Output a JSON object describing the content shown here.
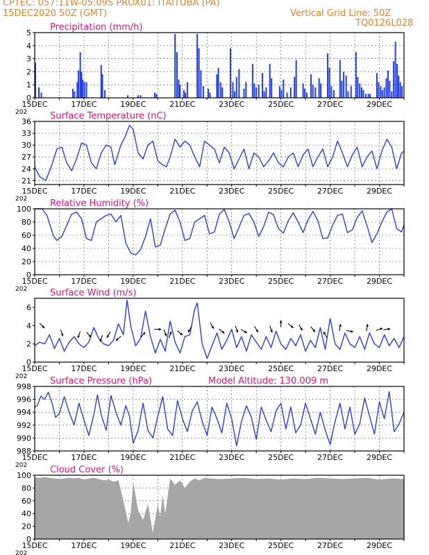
{
  "header": {
    "line1": "CPTEC:   057:11W-05:09S   PROX01: ITAITUBA (PA)",
    "date": "15DEC2020 50Z (GMT)",
    "grid_note": "Vertical Grid Line: 50Z",
    "code": "TQ0126L028"
  },
  "colors": {
    "header": "#e8822a",
    "title": "#e0147c",
    "series": "#2a3cf0",
    "bars": "#1f3cff",
    "cloud": "#a6a6a6",
    "frame": "#000000"
  },
  "x_ticks": [
    "15DEC",
    "17DEC",
    "19DEC",
    "21DEC",
    "23DEC",
    "25DEC",
    "27DEC",
    "29DEC"
  ],
  "x_year_stub": "202",
  "chart_data": [
    {
      "type": "bar",
      "title": "Precipitation (mm/h)",
      "x_range": [
        15,
        30
      ],
      "ylim": [
        0,
        5
      ],
      "yticks": [
        0,
        1,
        2,
        3,
        4,
        5
      ],
      "grid": "dashed",
      "x": [
        15.03,
        15.17,
        15.27,
        16.55,
        16.62,
        16.73,
        16.78,
        16.85,
        16.9,
        16.95,
        17.02,
        17.1,
        17.7,
        17.75,
        17.85,
        18.78,
        19.2,
        19.3,
        19.88,
        19.95,
        20.7,
        20.78,
        20.85,
        20.9,
        21.06,
        21.12,
        21.2,
        21.6,
        21.67,
        21.75,
        21.85,
        22.05,
        22.12,
        22.4,
        22.46,
        22.55,
        22.62,
        22.95,
        23.05,
        23.12,
        23.2,
        23.3,
        23.5,
        23.58,
        23.85,
        23.92,
        24.0,
        24.1,
        24.25,
        24.32,
        24.4,
        24.55,
        24.62,
        24.95,
        25.02,
        25.1,
        25.25,
        25.4,
        25.55,
        25.62,
        25.9,
        25.97,
        26.05,
        26.22,
        26.3,
        26.4,
        26.55,
        26.62,
        26.9,
        26.97,
        27.05,
        27.15,
        27.4,
        27.47,
        27.55,
        27.65,
        27.73,
        27.85,
        28.05,
        28.12,
        28.2,
        28.28,
        28.35,
        28.45,
        28.55,
        28.62,
        28.9,
        28.97,
        29.05,
        29.12,
        29.2,
        29.28,
        29.35,
        29.42,
        29.5,
        29.58,
        29.65,
        29.72,
        29.78,
        29.85,
        29.92
      ],
      "values": [
        2.7,
        0.8,
        0.4,
        0.7,
        0.5,
        1.2,
        2.1,
        3.5,
        2.0,
        1.4,
        1.2,
        1.2,
        2.5,
        1.8,
        0.6,
        0.2,
        0.2,
        0.2,
        0.4,
        0.3,
        4.9,
        3.5,
        1.4,
        1.0,
        0.6,
        0.4,
        1.2,
        4.9,
        3.8,
        2.1,
        0.9,
        0.7,
        0.4,
        1.8,
        2.3,
        1.2,
        0.8,
        3.8,
        1.2,
        0.5,
        1.6,
        2.2,
        0.7,
        1.2,
        2.6,
        1.1,
        0.8,
        1.0,
        1.9,
        0.5,
        0.8,
        2.6,
        1.5,
        0.9,
        0.6,
        1.4,
        0.4,
        0.8,
        1.6,
        2.9,
        1.1,
        0.7,
        0.4,
        1.8,
        1.0,
        0.8,
        1.5,
        1.1,
        3.4,
        2.3,
        0.9,
        0.6,
        2.9,
        1.3,
        2.0,
        1.7,
        0.5,
        0.9,
        3.5,
        1.6,
        1.1,
        0.8,
        0.6,
        0.3,
        0.3,
        0.3,
        1.9,
        1.2,
        0.9,
        0.6,
        0.8,
        1.5,
        2.1,
        1.3,
        0.5,
        2.8,
        4.3,
        2.6,
        1.7,
        1.2,
        0.9
      ]
    },
    {
      "type": "line",
      "title": "Surface Temperature (nC)",
      "x_range": [
        15,
        30
      ],
      "ylim": [
        20,
        36
      ],
      "yticks": [
        21,
        24,
        27,
        30,
        33,
        36
      ],
      "grid": "dashed",
      "x": [
        15.0,
        15.2,
        15.45,
        15.7,
        15.9,
        16.1,
        16.3,
        16.5,
        16.7,
        16.9,
        17.1,
        17.3,
        17.5,
        17.7,
        17.9,
        18.1,
        18.25,
        18.5,
        18.7,
        18.85,
        19.0,
        19.2,
        19.4,
        19.6,
        19.8,
        20.0,
        20.2,
        20.35,
        20.5,
        20.7,
        20.9,
        21.1,
        21.3,
        21.5,
        21.7,
        21.9,
        22.1,
        22.3,
        22.5,
        22.7,
        22.9,
        23.1,
        23.3,
        23.5,
        23.7,
        23.9,
        24.1,
        24.3,
        24.5,
        24.7,
        24.9,
        25.1,
        25.3,
        25.5,
        25.7,
        25.9,
        26.1,
        26.3,
        26.5,
        26.7,
        26.9,
        27.1,
        27.3,
        27.5,
        27.7,
        27.9,
        28.1,
        28.3,
        28.5,
        28.7,
        28.9,
        29.1,
        29.3,
        29.5,
        29.7,
        29.9,
        30.0
      ],
      "values": [
        24.5,
        22.0,
        21.0,
        25.0,
        29.0,
        29.5,
        25.5,
        23.5,
        26.5,
        30.5,
        30.0,
        25.5,
        24.0,
        28.0,
        30.0,
        29.5,
        25.0,
        30.0,
        32.5,
        35.0,
        34.0,
        28.0,
        26.5,
        30.0,
        31.0,
        26.0,
        25.0,
        24.5,
        27.0,
        31.5,
        29.5,
        31.0,
        30.0,
        27.0,
        24.5,
        31.0,
        30.0,
        29.0,
        25.5,
        29.5,
        28.0,
        24.0,
        26.5,
        29.0,
        24.0,
        28.0,
        27.0,
        24.5,
        26.0,
        28.0,
        25.5,
        24.5,
        27.0,
        28.0,
        24.5,
        27.5,
        29.0,
        24.5,
        27.0,
        29.0,
        24.5,
        27.0,
        31.0,
        28.0,
        24.5,
        27.5,
        29.5,
        24.5,
        27.0,
        28.5,
        24.0,
        28.5,
        31.5,
        29.5,
        24.0,
        28.0,
        28.5
      ]
    },
    {
      "type": "line",
      "title": "Relative Humidity (%)",
      "x_range": [
        15,
        30
      ],
      "ylim": [
        0,
        100
      ],
      "yticks": [
        0,
        20,
        40,
        60,
        80,
        100
      ],
      "grid": "dashed",
      "x": [
        15.0,
        15.3,
        15.5,
        15.75,
        15.9,
        16.1,
        16.3,
        16.5,
        16.7,
        16.9,
        17.1,
        17.3,
        17.5,
        17.7,
        17.9,
        18.1,
        18.3,
        18.5,
        18.7,
        18.9,
        19.1,
        19.3,
        19.5,
        19.7,
        19.9,
        20.1,
        20.3,
        20.5,
        20.7,
        20.9,
        21.1,
        21.3,
        21.5,
        21.7,
        21.9,
        22.1,
        22.3,
        22.5,
        22.7,
        22.9,
        23.1,
        23.3,
        23.5,
        23.7,
        23.9,
        24.1,
        24.3,
        24.5,
        24.7,
        24.9,
        25.1,
        25.3,
        25.5,
        25.7,
        25.9,
        26.1,
        26.3,
        26.5,
        26.7,
        26.9,
        27.1,
        27.3,
        27.5,
        27.7,
        27.9,
        28.1,
        28.3,
        28.5,
        28.7,
        28.9,
        29.1,
        29.3,
        29.5,
        29.7,
        29.9,
        30.0
      ],
      "values": [
        100,
        100,
        90,
        60,
        52,
        58,
        75,
        92,
        95,
        85,
        55,
        52,
        80,
        85,
        90,
        92,
        80,
        90,
        48,
        33,
        30,
        38,
        58,
        85,
        42,
        45,
        70,
        92,
        98,
        80,
        52,
        55,
        80,
        85,
        90,
        62,
        65,
        92,
        99,
        80,
        55,
        72,
        90,
        93,
        80,
        58,
        73,
        95,
        91,
        70,
        63,
        82,
        94,
        80,
        64,
        83,
        96,
        82,
        55,
        56,
        75,
        90,
        92,
        64,
        68,
        87,
        97,
        74,
        49,
        62,
        80,
        95,
        100,
        70,
        65,
        76
      ]
    },
    {
      "type": "line",
      "title": "Surface Wind (m/s)",
      "x_range": [
        15,
        30
      ],
      "ylim": [
        0,
        7
      ],
      "yticks": [
        0,
        2,
        4,
        6
      ],
      "grid": "none",
      "x": [
        15.0,
        15.2,
        15.4,
        15.6,
        15.8,
        16.0,
        16.2,
        16.4,
        16.6,
        16.8,
        17.0,
        17.2,
        17.4,
        17.6,
        17.8,
        18.0,
        18.2,
        18.4,
        18.6,
        18.75,
        18.9,
        19.1,
        19.3,
        19.5,
        19.7,
        19.9,
        20.1,
        20.3,
        20.5,
        20.7,
        20.9,
        21.1,
        21.3,
        21.5,
        21.6,
        21.8,
        22.0,
        22.2,
        22.4,
        22.6,
        22.8,
        23.0,
        23.2,
        23.4,
        23.6,
        23.8,
        24.0,
        24.2,
        24.4,
        24.6,
        24.8,
        25.0,
        25.2,
        25.4,
        25.6,
        25.8,
        26.0,
        26.2,
        26.4,
        26.6,
        26.8,
        27.0,
        27.2,
        27.4,
        27.6,
        27.8,
        28.0,
        28.2,
        28.4,
        28.6,
        28.8,
        29.0,
        29.2,
        29.4,
        29.6,
        29.8,
        30.0
      ],
      "values": [
        1.8,
        2.2,
        2.0,
        3.0,
        1.5,
        2.6,
        1.2,
        2.2,
        2.8,
        2.0,
        1.6,
        2.2,
        3.8,
        2.6,
        2.0,
        1.8,
        2.4,
        4.2,
        3.0,
        6.8,
        4.0,
        1.8,
        2.6,
        5.6,
        2.8,
        1.0,
        2.5,
        1.2,
        4.5,
        2.2,
        1.0,
        2.8,
        3.0,
        5.8,
        6.5,
        2.0,
        0.4,
        1.8,
        3.2,
        1.4,
        2.4,
        3.6,
        1.6,
        2.8,
        1.2,
        3.0,
        2.2,
        1.4,
        2.8,
        1.6,
        3.4,
        2.0,
        1.4,
        2.6,
        1.8,
        3.0,
        1.2,
        2.4,
        1.6,
        3.8,
        1.4,
        4.8,
        2.0,
        1.4,
        3.2,
        2.0,
        1.6,
        2.8,
        1.4,
        3.2,
        2.0,
        1.6,
        3.0,
        1.8,
        2.6,
        1.6,
        2.8
      ]
    },
    {
      "type": "line",
      "title": "Surface Pressure (hPa)",
      "annotation": "Model Altitude: 130.009  m",
      "x_range": [
        15,
        30
      ],
      "ylim": [
        988,
        998
      ],
      "yticks": [
        988,
        990,
        992,
        994,
        996,
        998
      ],
      "grid": "dashed",
      "x": [
        15.0,
        15.1,
        15.25,
        15.4,
        15.55,
        15.7,
        15.85,
        16.0,
        16.2,
        16.4,
        16.6,
        16.8,
        17.0,
        17.2,
        17.4,
        17.55,
        17.7,
        17.9,
        18.1,
        18.3,
        18.5,
        18.7,
        18.85,
        19.0,
        19.2,
        19.4,
        19.6,
        19.8,
        20.0,
        20.2,
        20.4,
        20.6,
        20.8,
        21.0,
        21.2,
        21.4,
        21.6,
        21.8,
        22.0,
        22.2,
        22.4,
        22.6,
        22.8,
        23.0,
        23.2,
        23.4,
        23.6,
        23.8,
        24.0,
        24.2,
        24.4,
        24.6,
        24.8,
        25.0,
        25.2,
        25.4,
        25.6,
        25.8,
        26.0,
        26.2,
        26.4,
        26.6,
        26.8,
        27.0,
        27.2,
        27.4,
        27.6,
        27.8,
        28.0,
        28.2,
        28.4,
        28.6,
        28.8,
        29.0,
        29.2,
        29.4,
        29.6,
        29.8,
        30.0
      ],
      "values": [
        994.8,
        995.0,
        996.5,
        996.0,
        997.1,
        995.5,
        993.2,
        993.8,
        996.4,
        994.0,
        992.0,
        995.4,
        992.8,
        990.4,
        993.6,
        996.7,
        993.6,
        991.2,
        996.6,
        994.0,
        992.0,
        995.0,
        993.4,
        989.2,
        991.2,
        995.4,
        991.2,
        990.0,
        993.4,
        996.4,
        991.4,
        990.4,
        995.8,
        993.0,
        991.0,
        994.2,
        995.6,
        992.6,
        990.4,
        994.8,
        993.0,
        990.8,
        995.4,
        993.0,
        988.8,
        992.6,
        995.0,
        993.2,
        989.8,
        994.8,
        992.8,
        991.0,
        994.2,
        995.4,
        991.4,
        994.8,
        990.8,
        992.0,
        995.4,
        993.0,
        990.6,
        994.0,
        991.2,
        989.0,
        992.6,
        995.4,
        991.4,
        994.8,
        990.6,
        992.2,
        996.2,
        993.4,
        990.6,
        995.6,
        993.0,
        997.2,
        991.0,
        992.2,
        994.0
      ]
    },
    {
      "type": "area",
      "title": "Cloud Cover (%)",
      "x_range": [
        15,
        30
      ],
      "ylim": [
        0,
        100
      ],
      "yticks": [
        0,
        20,
        40,
        60,
        80,
        100
      ],
      "grid": "dashed",
      "x": [
        15.0,
        15.2,
        15.4,
        15.6,
        15.8,
        16.0,
        16.2,
        16.4,
        16.6,
        16.8,
        17.0,
        17.2,
        17.4,
        17.6,
        17.8,
        18.0,
        18.2,
        18.4,
        18.6,
        18.8,
        18.9,
        19.0,
        19.2,
        19.4,
        19.6,
        19.8,
        20.0,
        20.1,
        20.2,
        20.3,
        20.5,
        20.7,
        20.9,
        21.1,
        21.3,
        21.5,
        21.7,
        21.9,
        22.1,
        22.5,
        23.0,
        23.5,
        24.0,
        24.5,
        25.0,
        25.5,
        26.0,
        26.5,
        27.0,
        27.5,
        28.0,
        28.5,
        29.0,
        29.5,
        30.0
      ],
      "values": [
        97,
        96,
        97,
        96,
        95,
        94,
        95,
        96,
        95,
        96,
        93,
        95,
        96,
        94,
        92,
        93,
        90,
        92,
        60,
        25,
        40,
        90,
        45,
        30,
        55,
        10,
        55,
        35,
        70,
        40,
        95,
        85,
        92,
        80,
        90,
        95,
        92,
        96,
        95,
        94,
        95,
        96,
        94,
        95,
        93,
        95,
        94,
        96,
        95,
        94,
        95,
        96,
        93,
        95,
        94
      ]
    }
  ],
  "wind_arrows": [
    {
      "day": 15.3,
      "speed": 4.0,
      "dir_deg": 135
    },
    {
      "day": 16.1,
      "speed": 3.2,
      "dir_deg": 160
    },
    {
      "day": 16.8,
      "speed": 3.0,
      "dir_deg": 200
    },
    {
      "day": 17.2,
      "speed": 3.0,
      "dir_deg": 140
    },
    {
      "day": 17.7,
      "speed": 2.6,
      "dir_deg": 200
    },
    {
      "day": 18.0,
      "speed": 3.0,
      "dir_deg": 210
    },
    {
      "day": 18.4,
      "speed": 2.6,
      "dir_deg": 230
    },
    {
      "day": 19.4,
      "speed": 3.0,
      "dir_deg": 40
    },
    {
      "day": 20.0,
      "speed": 3.6,
      "dir_deg": 90
    },
    {
      "day": 20.3,
      "speed": 3.2,
      "dir_deg": 160
    },
    {
      "day": 20.5,
      "speed": 3.0,
      "dir_deg": 20
    },
    {
      "day": 20.9,
      "speed": 3.2,
      "dir_deg": 130
    },
    {
      "day": 21.3,
      "speed": 3.6,
      "dir_deg": 210
    },
    {
      "day": 22.2,
      "speed": 4.0,
      "dir_deg": 150
    },
    {
      "day": 22.6,
      "speed": 3.4,
      "dir_deg": 130
    },
    {
      "day": 23.2,
      "speed": 3.6,
      "dir_deg": 160
    },
    {
      "day": 23.5,
      "speed": 3.4,
      "dir_deg": 120
    },
    {
      "day": 24.0,
      "speed": 3.6,
      "dir_deg": 150
    },
    {
      "day": 24.6,
      "speed": 3.6,
      "dir_deg": 160
    },
    {
      "day": 25.0,
      "speed": 4.2,
      "dir_deg": 0
    },
    {
      "day": 25.4,
      "speed": 4.0,
      "dir_deg": 130
    },
    {
      "day": 25.8,
      "speed": 3.8,
      "dir_deg": 150
    },
    {
      "day": 26.3,
      "speed": 3.6,
      "dir_deg": 140
    },
    {
      "day": 26.8,
      "speed": 3.0,
      "dir_deg": 330
    },
    {
      "day": 27.4,
      "speed": 3.8,
      "dir_deg": 10
    },
    {
      "day": 27.8,
      "speed": 3.4,
      "dir_deg": 100
    },
    {
      "day": 28.5,
      "speed": 3.8,
      "dir_deg": 10
    },
    {
      "day": 29.0,
      "speed": 3.6,
      "dir_deg": 70
    },
    {
      "day": 29.3,
      "speed": 3.6,
      "dir_deg": 80
    }
  ]
}
